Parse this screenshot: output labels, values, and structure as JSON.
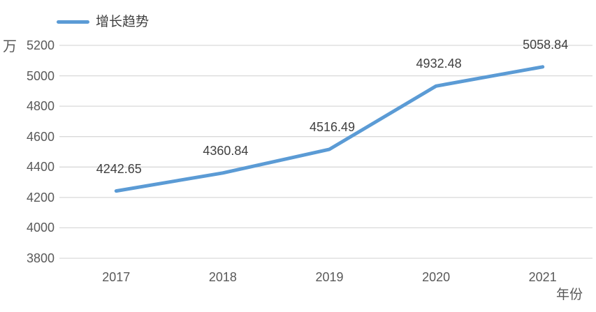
{
  "chart_data": {
    "type": "line",
    "title": "",
    "unit_label": "万",
    "xlabel": "年份",
    "ylabel": "",
    "categories": [
      "2017",
      "2018",
      "2019",
      "2020",
      "2021"
    ],
    "series": [
      {
        "name": "增长趋势",
        "values": [
          4242.65,
          4360.84,
          4516.49,
          4932.48,
          5058.84
        ]
      }
    ],
    "data_labels": [
      "4242.65",
      "4360.84",
      "4516.49",
      "4932.48",
      "5058.84"
    ],
    "yticks": [
      3800,
      4000,
      4200,
      4400,
      4600,
      4800,
      5000,
      5200
    ],
    "ylim": [
      3800,
      5200
    ],
    "grid": true,
    "legend_position": "top-left",
    "colors": {
      "series": "#5B9BD5",
      "grid": "#D9D9D9",
      "tick_text": "#595959",
      "data_label_text": "#404040"
    }
  }
}
